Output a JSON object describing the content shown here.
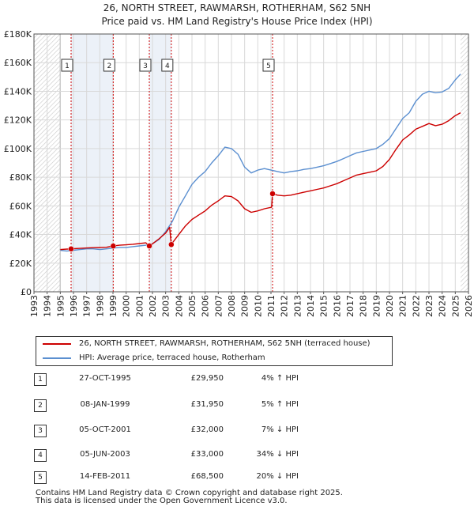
{
  "title_line1": "26, NORTH STREET, RAWMARSH, ROTHERHAM, S62 5NH",
  "title_line2": "Price paid vs. HM Land Registry's House Price Index (HPI)",
  "colors": {
    "property": "#cc0000",
    "hpi": "#5b8fd0",
    "shade": "#dde6f3",
    "hatch": "#c8c8c8",
    "grid": "#d9d9d9",
    "sale_line": "#cc0000"
  },
  "legend": {
    "property_label": "26, NORTH STREET, RAWMARSH, ROTHERHAM, S62 5NH (terraced house)",
    "hpi_label": "HPI: Average price, terraced house, Rotherham"
  },
  "sales": [
    {
      "num": "1",
      "date": "27-OCT-1995",
      "price": "£29,950",
      "hpi": "4% ↑ HPI"
    },
    {
      "num": "2",
      "date": "08-JAN-1999",
      "price": "£31,950",
      "hpi": "5% ↑ HPI"
    },
    {
      "num": "3",
      "date": "05-OCT-2001",
      "price": "£32,000",
      "hpi": "7% ↓ HPI"
    },
    {
      "num": "4",
      "date": "05-JUN-2003",
      "price": "£33,000",
      "hpi": "34% ↓ HPI"
    },
    {
      "num": "5",
      "date": "14-FEB-2011",
      "price": "£68,500",
      "hpi": "20% ↓ HPI"
    }
  ],
  "footer": {
    "line1": "Contains HM Land Registry data © Crown copyright and database right 2025.",
    "line2": "This data is licensed under the Open Government Licence v3.0."
  },
  "chart_data": {
    "type": "line",
    "title": "26, NORTH STREET, RAWMARSH, ROTHERHAM, S62 5NH — Price paid vs. HM Land Registry's House Price Index (HPI)",
    "xlabel": "",
    "ylabel": "",
    "xlim": [
      1993,
      2026
    ],
    "ylim": [
      0,
      180000
    ],
    "grid": true,
    "legend_position": "below",
    "yticks": [
      {
        "value": 0,
        "label": "£0"
      },
      {
        "value": 20000,
        "label": "£20K"
      },
      {
        "value": 40000,
        "label": "£40K"
      },
      {
        "value": 60000,
        "label": "£60K"
      },
      {
        "value": 80000,
        "label": "£80K"
      },
      {
        "value": 100000,
        "label": "£100K"
      },
      {
        "value": 120000,
        "label": "£120K"
      },
      {
        "value": 140000,
        "label": "£140K"
      },
      {
        "value": 160000,
        "label": "£160K"
      },
      {
        "value": 180000,
        "label": "£180K"
      }
    ],
    "xticks": [
      "1993",
      "1994",
      "1995",
      "1996",
      "1997",
      "1998",
      "1999",
      "2000",
      "2001",
      "2002",
      "2003",
      "2004",
      "2005",
      "2006",
      "2007",
      "2008",
      "2009",
      "2010",
      "2011",
      "2012",
      "2013",
      "2014",
      "2015",
      "2016",
      "2017",
      "2018",
      "2019",
      "2020",
      "2021",
      "2022",
      "2023",
      "2024",
      "2025",
      "2026"
    ],
    "data_range": [
      1995.0,
      2025.4
    ],
    "sale_markers": [
      {
        "label": "1",
        "x": 1995.82,
        "y": 29950
      },
      {
        "label": "2",
        "x": 1999.02,
        "y": 31950
      },
      {
        "label": "3",
        "x": 2001.76,
        "y": 32000
      },
      {
        "label": "4",
        "x": 2003.43,
        "y": 33000
      },
      {
        "label": "5",
        "x": 2011.12,
        "y": 68500
      }
    ],
    "series": [
      {
        "name": "HPI: Average price, terraced house, Rotherham",
        "color": "#5b8fd0",
        "x": [
          1995.0,
          1995.5,
          1996.0,
          1996.5,
          1997.0,
          1997.5,
          1998.0,
          1998.5,
          1999.0,
          1999.5,
          2000.0,
          2000.5,
          2001.0,
          2001.5,
          2002.0,
          2002.5,
          2003.0,
          2003.5,
          2004.0,
          2004.5,
          2005.0,
          2005.5,
          2006.0,
          2006.5,
          2007.0,
          2007.5,
          2008.0,
          2008.5,
          2009.0,
          2009.5,
          2010.0,
          2010.5,
          2011.0,
          2011.5,
          2012.0,
          2012.5,
          2013.0,
          2013.5,
          2014.0,
          2014.5,
          2015.0,
          2015.5,
          2016.0,
          2016.5,
          2017.0,
          2017.5,
          2018.0,
          2018.5,
          2019.0,
          2019.5,
          2020.0,
          2020.5,
          2021.0,
          2021.5,
          2022.0,
          2022.5,
          2023.0,
          2023.5,
          2024.0,
          2024.5,
          2025.0,
          2025.4
        ],
        "values": [
          29000,
          28500,
          29000,
          29500,
          30000,
          30000,
          29500,
          30000,
          30500,
          31000,
          31000,
          31500,
          32000,
          32500,
          33500,
          36500,
          42000,
          49000,
          59000,
          67000,
          75000,
          80000,
          84000,
          90000,
          95000,
          101000,
          100000,
          96000,
          87000,
          83000,
          85000,
          86000,
          85000,
          84000,
          83000,
          84000,
          84500,
          85500,
          86000,
          87000,
          88000,
          89500,
          91000,
          93000,
          95000,
          97000,
          98000,
          99000,
          100000,
          103000,
          107000,
          114000,
          121000,
          125000,
          133000,
          138000,
          140000,
          139000,
          139500,
          142000,
          148000,
          152000
        ]
      },
      {
        "name": "26, NORTH STREET, RAWMARSH, ROTHERHAM, S62 5NH (terraced house)",
        "color": "#cc0000",
        "x": [
          1995.0,
          1995.5,
          1995.82,
          1996.0,
          1996.5,
          1997.0,
          1997.5,
          1998.0,
          1998.5,
          1999.02,
          1999.5,
          2000.0,
          2000.5,
          2001.0,
          2001.5,
          2001.76,
          2002.0,
          2002.5,
          2003.0,
          2003.3,
          2003.43,
          2003.5,
          2004.0,
          2004.5,
          2005.0,
          2005.5,
          2006.0,
          2006.5,
          2007.0,
          2007.5,
          2008.0,
          2008.5,
          2009.0,
          2009.5,
          2010.0,
          2010.5,
          2011.05,
          2011.12,
          2011.5,
          2012.0,
          2012.5,
          2013.0,
          2013.5,
          2014.0,
          2014.5,
          2015.0,
          2015.5,
          2016.0,
          2016.5,
          2017.0,
          2017.5,
          2018.0,
          2018.5,
          2019.0,
          2019.5,
          2020.0,
          2020.5,
          2021.0,
          2021.5,
          2022.0,
          2022.5,
          2023.0,
          2023.5,
          2024.0,
          2024.5,
          2025.0,
          2025.4
        ],
        "values": [
          29500,
          29800,
          29950,
          30100,
          30300,
          30600,
          30800,
          30900,
          31100,
          31950,
          32500,
          32800,
          33200,
          33700,
          34200,
          32000,
          33500,
          37000,
          41000,
          45000,
          33000,
          34000,
          40000,
          46000,
          50500,
          53500,
          56500,
          60500,
          63500,
          67000,
          66500,
          63500,
          58000,
          55500,
          56500,
          58000,
          59000,
          68500,
          67500,
          67000,
          67500,
          68500,
          69500,
          70500,
          71500,
          72500,
          74000,
          75500,
          77500,
          79500,
          81500,
          82500,
          83500,
          84500,
          87500,
          92500,
          99500,
          106000,
          109500,
          113500,
          115500,
          117500,
          116000,
          117000,
          119500,
          123000,
          125000
        ]
      }
    ]
  }
}
